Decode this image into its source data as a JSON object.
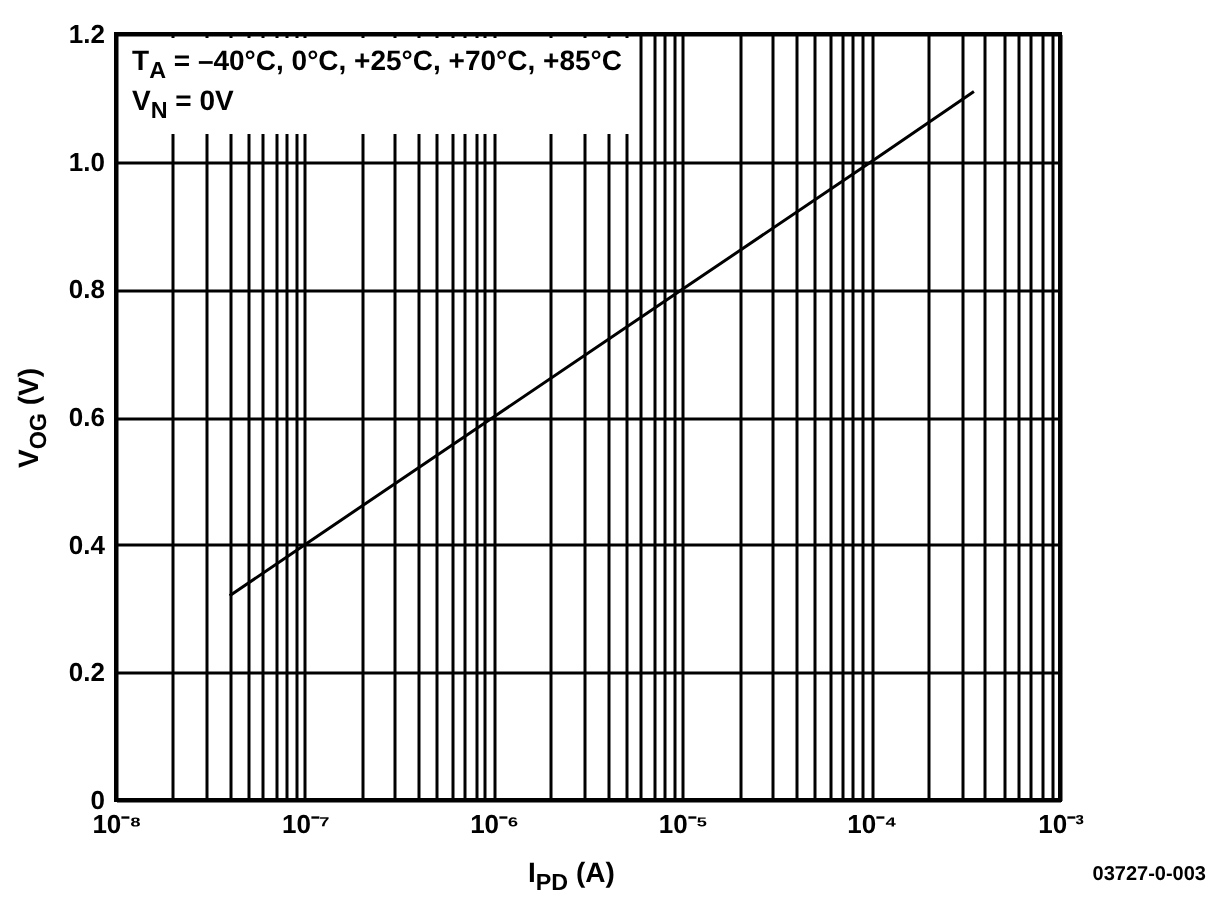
{
  "chart_data": {
    "type": "line",
    "xlabel": "I$_{PD}$ (A)",
    "ylabel": "V$_{OG}$ (V)",
    "annotations": [
      "T$_{A}$ = –40°C, 0°C, +25°C, +70°C, +85°C",
      "V$_{N}$ = 0V",
      "03727-0-003"
    ],
    "series": [
      {
        "color": "#000000",
        "x": [
          4e-08,
          1e-07,
          1e-06,
          1e-05,
          0.0001,
          0.00035
        ],
        "values": [
          0.32,
          0.4,
          0.6,
          0.8,
          1.0,
          1.11
        ]
      }
    ],
    "log": "x",
    "xlim": [
      1e-08,
      0.001
    ],
    "ylim": [
      0,
      1.2
    ],
    "xticks": [
      {
        "value": 1e-08,
        "label": "10⁻⁸"
      },
      {
        "value": 2e-08,
        "label": null
      },
      {
        "value": 3e-08,
        "label": null
      },
      {
        "value": 4e-08,
        "label": null
      },
      {
        "value": 5e-08,
        "label": null
      },
      {
        "value": 6e-08,
        "label": null
      },
      {
        "value": 7e-08,
        "label": null
      },
      {
        "value": 8e-08,
        "label": null
      },
      {
        "value": 9e-08,
        "label": null
      },
      {
        "value": 1e-07,
        "label": "10⁻⁷"
      },
      {
        "value": 2e-07,
        "label": null
      },
      {
        "value": 3e-07,
        "label": null
      },
      {
        "value": 4e-07,
        "label": null
      },
      {
        "value": 5e-07,
        "label": null
      },
      {
        "value": 6e-07,
        "label": null
      },
      {
        "value": 7e-07,
        "label": null
      },
      {
        "value": 8e-07,
        "label": null
      },
      {
        "value": 9e-07,
        "label": null
      },
      {
        "value": 1e-06,
        "label": "10⁻⁶"
      },
      {
        "value": 2e-06,
        "label": null
      },
      {
        "value": 3e-06,
        "label": null
      },
      {
        "value": 4e-06,
        "label": null
      },
      {
        "value": 5e-06,
        "label": null
      },
      {
        "value": 6e-06,
        "label": null
      },
      {
        "value": 7e-06,
        "label": null
      },
      {
        "value": 8e-06,
        "label": null
      },
      {
        "value": 9e-06,
        "label": null
      },
      {
        "value": 1e-05,
        "label": "10⁻⁵"
      },
      {
        "value": 2e-05,
        "label": null
      },
      {
        "value": 3e-05,
        "label": null
      },
      {
        "value": 4e-05,
        "label": null
      },
      {
        "value": 5e-05,
        "label": null
      },
      {
        "value": 6e-05,
        "label": null
      },
      {
        "value": 7e-05,
        "label": null
      },
      {
        "value": 8e-05,
        "label": null
      },
      {
        "value": 9e-05,
        "label": null
      },
      {
        "value": 0.0001,
        "label": "10⁻⁴"
      },
      {
        "value": 0.0002,
        "label": null
      },
      {
        "value": 0.0003,
        "label": null
      },
      {
        "value": 0.0004,
        "label": null
      },
      {
        "value": 0.0005,
        "label": null
      },
      {
        "value": 0.0006,
        "label": null
      },
      {
        "value": 0.0007,
        "label": null
      },
      {
        "value": 0.0008,
        "label": null
      },
      {
        "value": 0.0009,
        "label": null
      },
      {
        "value": 0.001,
        "label": "10⁻³"
      }
    ],
    "yticks": [
      0,
      0.2,
      0.4,
      0.6,
      0.8,
      {
        "value": 1,
        "label": "1.0"
      },
      1.2
    ],
    "grid": true
  }
}
